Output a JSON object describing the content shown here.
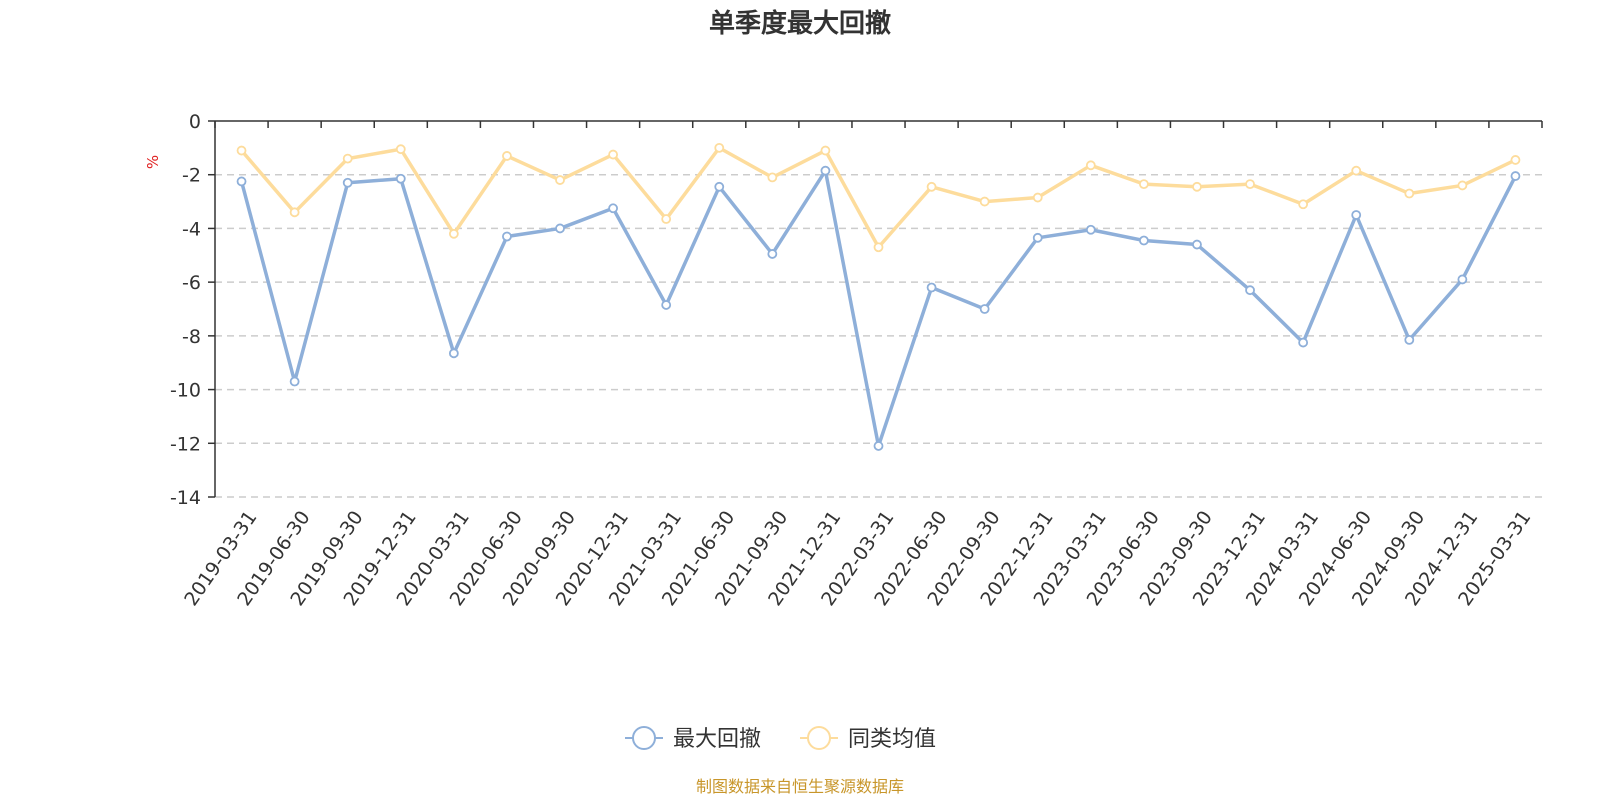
{
  "chart_data": {
    "type": "line",
    "title": "单季度最大回撤",
    "ylabel": "%",
    "ylim": [
      -14,
      0
    ],
    "yticks": [
      0,
      -2,
      -4,
      -6,
      -8,
      -10,
      -12,
      -14
    ],
    "grid": true,
    "legend_position": "bottom",
    "categories": [
      "2019-03-31",
      "2019-06-30",
      "2019-09-30",
      "2019-12-31",
      "2020-03-31",
      "2020-06-30",
      "2020-09-30",
      "2020-12-31",
      "2021-03-31",
      "2021-06-30",
      "2021-09-30",
      "2021-12-31",
      "2022-03-31",
      "2022-06-30",
      "2022-09-30",
      "2022-12-31",
      "2023-03-31",
      "2023-06-30",
      "2023-09-30",
      "2023-12-31",
      "2024-03-31",
      "2024-06-30",
      "2024-09-30",
      "2024-12-31",
      "2025-03-31"
    ],
    "series": [
      {
        "name": "最大回撤",
        "color": "#8eafd9",
        "values": [
          -2.25,
          -9.7,
          -2.3,
          -2.15,
          -8.65,
          -4.3,
          -4.0,
          -3.25,
          -6.85,
          -2.45,
          -4.95,
          -1.85,
          -12.1,
          -6.2,
          -7.0,
          -4.35,
          -4.05,
          -4.45,
          -4.6,
          -6.3,
          -8.25,
          -3.5,
          -8.15,
          -5.9,
          -2.05
        ]
      },
      {
        "name": "同类均值",
        "color": "#fddc9c",
        "values": [
          -1.1,
          -3.4,
          -1.4,
          -1.05,
          -4.2,
          -1.3,
          -2.2,
          -1.25,
          -3.65,
          -1.0,
          -2.1,
          -1.1,
          -4.7,
          -2.45,
          -3.0,
          -2.85,
          -1.65,
          -2.35,
          -2.45,
          -2.35,
          -3.1,
          -1.85,
          -2.7,
          -2.4,
          -1.45
        ]
      }
    ]
  },
  "source_text": "制图数据来自恒生聚源数据库"
}
